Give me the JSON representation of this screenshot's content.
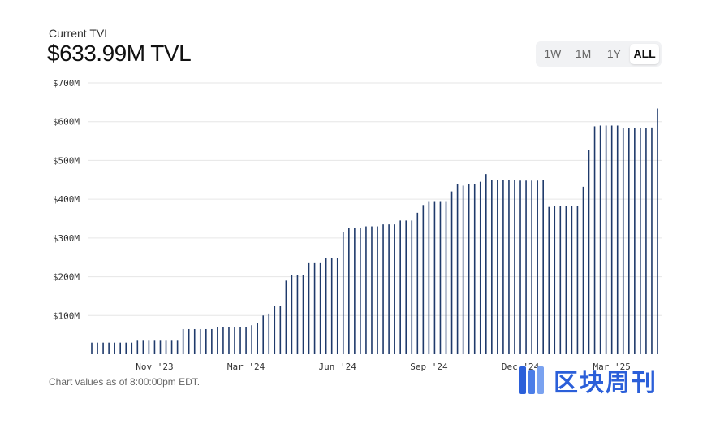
{
  "header": {
    "label": "Current TVL",
    "value": "$633.99M TVL"
  },
  "range": {
    "buttons": [
      "1W",
      "1M",
      "1Y",
      "ALL"
    ],
    "active": "ALL"
  },
  "footnote": "Chart values as of 8:00:00pm EDT.",
  "watermark": {
    "text": "区块周刊"
  },
  "colors": {
    "bar": "#1f3a6b",
    "grid": "#e6e6e6",
    "brand": "#2b5fd9"
  },
  "chart_data": {
    "type": "bar",
    "title": "",
    "xlabel": "",
    "ylabel": "",
    "ylim": [
      0,
      700
    ],
    "y_unit": "M USD",
    "y_ticks": [
      100,
      200,
      300,
      400,
      500,
      600,
      700
    ],
    "y_tick_labels": [
      "$100M",
      "$200M",
      "$300M",
      "$400M",
      "$500M",
      "$600M",
      "$700M"
    ],
    "x_tick_labels": [
      {
        "label": "Nov '23",
        "index": 11
      },
      {
        "label": "Mar '24",
        "index": 27
      },
      {
        "label": "Jun '24",
        "index": 43
      },
      {
        "label": "Sep '24",
        "index": 59
      },
      {
        "label": "Dec '24",
        "index": 75
      },
      {
        "label": "Mar '25",
        "index": 91
      }
    ],
    "grid": true,
    "values": [
      30,
      30,
      30,
      30,
      30,
      30,
      30,
      30,
      35,
      35,
      35,
      35,
      35,
      35,
      35,
      35,
      65,
      65,
      65,
      65,
      65,
      65,
      70,
      70,
      70,
      70,
      70,
      70,
      75,
      80,
      100,
      105,
      125,
      125,
      190,
      205,
      205,
      205,
      235,
      235,
      235,
      248,
      248,
      248,
      315,
      325,
      325,
      325,
      330,
      330,
      330,
      335,
      335,
      335,
      345,
      345,
      345,
      365,
      385,
      395,
      395,
      395,
      395,
      420,
      440,
      435,
      440,
      440,
      445,
      465,
      450,
      450,
      450,
      450,
      450,
      448,
      448,
      448,
      448,
      450,
      380,
      383,
      383,
      383,
      383,
      383,
      432,
      528,
      588,
      590,
      590,
      590,
      590,
      583,
      583,
      583,
      583,
      583,
      585,
      634
    ]
  }
}
